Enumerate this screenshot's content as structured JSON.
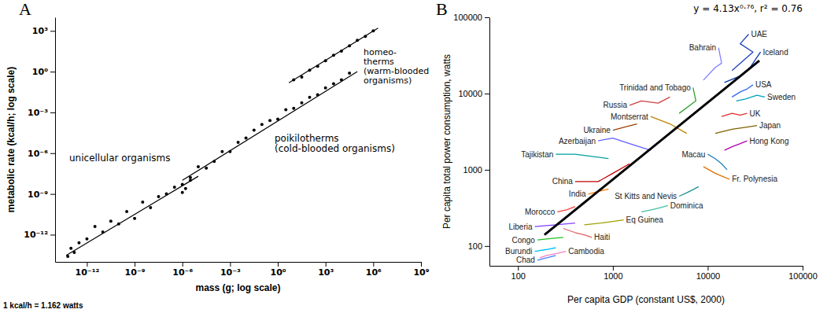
{
  "chart_data": [
    {
      "type": "scatter",
      "panel_label": "A",
      "x_label": "mass (g; log scale)",
      "y_label": "metabolic rate (kcal/h; log scale)",
      "log": true,
      "xlim": [
        1e-14,
        1000000000.0
      ],
      "ylim": [
        1e-14,
        10000.0
      ],
      "xticks": [
        {
          "value": 1e-12,
          "label": "10⁻¹²"
        },
        {
          "value": 1e-09,
          "label": "10⁻⁹"
        },
        {
          "value": 1e-06,
          "label": "10⁻⁶"
        },
        {
          "value": 0.001,
          "label": "10⁻³"
        },
        {
          "value": 1,
          "label": "10⁰"
        },
        {
          "value": 1000,
          "label": "10³"
        },
        {
          "value": 1000000,
          "label": "10⁶"
        },
        {
          "value": 1000000000,
          "label": "10⁹"
        }
      ],
      "yticks": [
        {
          "value": 1e-12,
          "label": "10⁻¹²"
        },
        {
          "value": 1e-09,
          "label": "10⁻⁹"
        },
        {
          "value": 1e-06,
          "label": "10⁻⁶"
        },
        {
          "value": 0.001,
          "label": "10⁻³"
        },
        {
          "value": 1,
          "label": "10⁰"
        },
        {
          "value": 1000,
          "label": "10³"
        }
      ],
      "series": [
        {
          "type": "scatter",
          "marker": "circle",
          "color": "#000000",
          "x": [
            6.3e-14,
            1e-13,
            1.6e-13,
            3.2e-13,
            1e-12,
            3.2e-12,
            1e-11,
            3.2e-11,
            1e-10,
            3.2e-10,
            1e-09,
            3.2e-09,
            1e-08,
            3.2e-08,
            1e-07,
            3.2e-07,
            1e-06,
            1e-06,
            3.2e-06,
            1.6e-06
          ],
          "values": [
            2.5e-14,
            1e-13,
            5e-14,
            2.5e-13,
            5e-13,
            4e-12,
            1.6e-12,
            1e-11,
            6.3e-12,
            5e-11,
            1.6e-11,
            2.5e-10,
            1e-10,
            6.3e-10,
            1e-09,
            3.2e-09,
            1.3e-09,
            5e-09,
            1e-08,
            2.5e-09
          ]
        },
        {
          "type": "scatter",
          "marker": "circle",
          "color": "#000000",
          "x": [
            3.2e-06,
            1e-05,
            3.2e-05,
            0.0001,
            0.00032,
            0.001,
            0.0032,
            0.01,
            0.032,
            0.1,
            0.32,
            1,
            3.2,
            10,
            32,
            100,
            320,
            1000,
            3200,
            10000,
            32000
          ],
          "values": [
            1.6e-08,
            1e-07,
            7.9e-08,
            2.5e-07,
            1.3e-06,
            1.3e-06,
            6.3e-06,
            1.3e-05,
            5e-05,
            0.00013,
            0.00025,
            0.00032,
            0.0016,
            0.002,
            0.005,
            0.013,
            0.02,
            0.063,
            0.13,
            0.25,
            0.79
          ]
        },
        {
          "type": "scatter",
          "marker": "circle",
          "color": "#000000",
          "x": [
            10,
            32,
            100,
            320,
            1000,
            3200,
            10000,
            32000,
            100000,
            320000,
            1000000
          ],
          "values": [
            0.25,
            0.4,
            1.3,
            2.5,
            6.3,
            16,
            32,
            79,
            200,
            400,
            1000
          ]
        },
        {
          "type": "line",
          "color": "#000000",
          "x": [
            5e-14,
            1e-05
          ],
          "values": [
            3e-14,
            2e-08
          ]
        },
        {
          "type": "line",
          "color": "#000000",
          "x": [
            1e-06,
            100000
          ],
          "values": [
            1e-08,
            1
          ]
        },
        {
          "type": "line",
          "color": "#000000",
          "x": [
            5,
            2000000
          ],
          "values": [
            0.15,
            1600
          ]
        }
      ],
      "annotations": [
        {
          "text": [
            "unicellular organisms"
          ]
        },
        {
          "text": [
            "poikilotherms",
            "(cold-blooded organisms)"
          ]
        },
        {
          "text": [
            "homeo-",
            "therms",
            "(warm-blooded",
            "organisms)"
          ]
        }
      ],
      "footnote": "1 kcal/h = 1.162 watts"
    },
    {
      "type": "line",
      "panel_label": "B",
      "x_label": "Per capita GDP (constant US$, 2000)",
      "y_label": "Per capita total power consumption, watts",
      "log": true,
      "xlim": [
        50,
        100000
      ],
      "ylim": [
        55,
        100000
      ],
      "xticks": [
        100,
        1000,
        10000,
        100000
      ],
      "yticks": [
        100,
        1000,
        10000,
        100000
      ],
      "annotations": [
        {
          "text": [
            "y = 4.13x⁰·⁷⁶, r² = 0.76"
          ]
        }
      ],
      "series": [
        {
          "name": "UAE",
          "color": "#1f3fbf",
          "x": [
            18000,
            30000,
            22000,
            27000
          ],
          "values": [
            20000,
            35000,
            45000,
            60000
          ]
        },
        {
          "name": "Bahrain",
          "color": "#7f7fff",
          "x": [
            9000,
            12000,
            14000,
            13000
          ],
          "values": [
            15000,
            22000,
            25000,
            40000
          ]
        },
        {
          "name": "Iceland",
          "color": "#0033aa",
          "x": [
            15000,
            22000,
            28000,
            36000
          ],
          "values": [
            14000,
            17000,
            22000,
            35000
          ]
        },
        {
          "name": "USA",
          "color": "#3366ff",
          "x": [
            18000,
            22000,
            26000,
            30000
          ],
          "values": [
            9000,
            10500,
            11500,
            13000
          ]
        },
        {
          "name": "Sweden",
          "color": "#00a0c0",
          "x": [
            20000,
            25000,
            33000,
            40000
          ],
          "values": [
            8000,
            8500,
            9500,
            9000
          ]
        },
        {
          "name": "Trinidad and Tobago",
          "color": "#30a030",
          "x": [
            5000,
            7500,
            7000
          ],
          "values": [
            5500,
            8000,
            12000
          ]
        },
        {
          "name": "Russia",
          "color": "#d04040",
          "x": [
            4000,
            3000,
            2000,
            1500
          ],
          "values": [
            9000,
            7500,
            8000,
            7000
          ]
        },
        {
          "name": "Montserrat",
          "color": "#c08000",
          "x": [
            6000,
            4000,
            2500
          ],
          "values": [
            3000,
            4000,
            5000
          ]
        },
        {
          "name": "UK",
          "color": "#e03030",
          "x": [
            14000,
            18000,
            22000,
            26000
          ],
          "values": [
            5000,
            5500,
            5200,
            5500
          ]
        },
        {
          "name": "Japan",
          "color": "#806000",
          "x": [
            12000,
            18000,
            25000,
            33000
          ],
          "values": [
            3000,
            3400,
            3600,
            3800
          ]
        },
        {
          "name": "Hong Kong",
          "color": "#b000b0",
          "x": [
            15000,
            18000,
            22000,
            26000
          ],
          "values": [
            1800,
            2000,
            2200,
            2400
          ]
        },
        {
          "name": "Macau",
          "color": "#2080c0",
          "x": [
            16000,
            14000,
            12000,
            10000
          ],
          "values": [
            1000,
            1200,
            1400,
            1600
          ]
        },
        {
          "name": "Fr. Polynesia",
          "color": "#e07000",
          "x": [
            9000,
            12000,
            15000,
            17000
          ],
          "values": [
            1100,
            900,
            800,
            750
          ]
        },
        {
          "name": "St Kitts and Nevis",
          "color": "#209090",
          "x": [
            8000,
            7000,
            6000,
            5000
          ],
          "values": [
            600,
            550,
            500,
            450
          ]
        },
        {
          "name": "Dominica",
          "color": "#40c0a0",
          "x": [
            2000,
            2600,
            3200,
            3800
          ],
          "values": [
            280,
            300,
            320,
            340
          ]
        },
        {
          "name": "Eq Guinea",
          "color": "#a0a000",
          "x": [
            500,
            750,
            1000,
            1300
          ],
          "values": [
            190,
            200,
            210,
            220
          ]
        },
        {
          "name": "Haiti",
          "color": "#e06060",
          "x": [
            300,
            400,
            500,
            600
          ],
          "values": [
            170,
            150,
            140,
            130
          ]
        },
        {
          "name": "Cambodia",
          "color": "#f080c0",
          "x": [
            170,
            200,
            260,
            320
          ],
          "values": [
            70,
            75,
            80,
            85
          ]
        },
        {
          "name": "Chad",
          "color": "#4080ff",
          "x": [
            250,
            200,
            160
          ],
          "values": [
            75,
            70,
            65
          ]
        },
        {
          "name": "Burundi",
          "color": "#00c0ff",
          "x": [
            250,
            200,
            150
          ],
          "values": [
            95,
            90,
            85
          ]
        },
        {
          "name": "Congo",
          "color": "#20c020",
          "x": [
            300,
            220,
            160
          ],
          "values": [
            130,
            125,
            120
          ]
        },
        {
          "name": "Liberia",
          "color": "#8040ff",
          "x": [
            400,
            250,
            150
          ],
          "values": [
            200,
            190,
            180
          ]
        },
        {
          "name": "Morocco",
          "color": "#ff4040",
          "x": [
            400,
            330,
            260
          ],
          "values": [
            330,
            300,
            280
          ]
        },
        {
          "name": "India",
          "color": "#ff8000",
          "x": [
            900,
            700,
            550
          ],
          "values": [
            560,
            520,
            480
          ]
        },
        {
          "name": "China",
          "color": "#c00000",
          "x": [
            1500,
            1000,
            700,
            400
          ],
          "values": [
            1200,
            900,
            700,
            700
          ]
        },
        {
          "name": "Tajikistan",
          "color": "#00a0a0",
          "x": [
            900,
            600,
            400,
            250
          ],
          "values": [
            1400,
            1500,
            1600,
            1600
          ]
        },
        {
          "name": "Azerbaijan",
          "color": "#6060ff",
          "x": [
            2500,
            1500,
            1000,
            700
          ],
          "values": [
            1800,
            2200,
            2600,
            2400
          ]
        },
        {
          "name": "Ukraine",
          "color": "#a04000",
          "x": [
            1800,
            1400,
            1000
          ],
          "values": [
            4000,
            3700,
            3300
          ]
        },
        {
          "type": "line",
          "color": "#000000",
          "x": [
            190,
            35000
          ],
          "values": [
            140,
            27000
          ]
        }
      ]
    }
  ]
}
